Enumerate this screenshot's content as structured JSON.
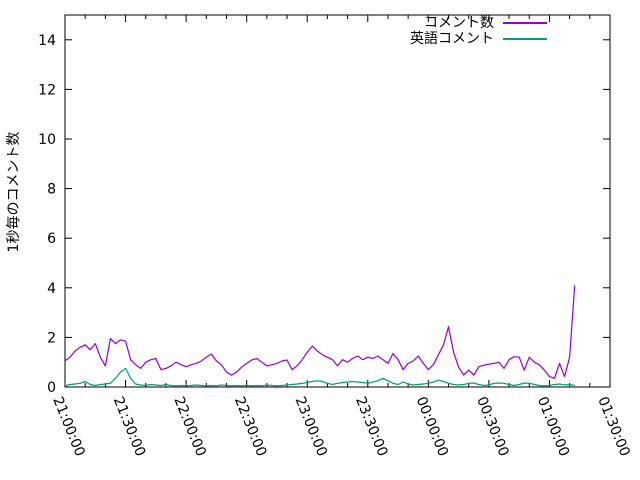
{
  "page": {
    "background": "#ffffff",
    "text_color": "#000000"
  },
  "chart_data": {
    "type": "line",
    "title": "",
    "xlabel": "",
    "ylabel": "1秒毎のコメント数",
    "ylim": [
      0,
      15
    ],
    "y_ticks": [
      0,
      2,
      4,
      6,
      8,
      10,
      12,
      14
    ],
    "y_tick_labels": [
      "0",
      "2",
      "4",
      "6",
      "8",
      "10",
      "12",
      "14"
    ],
    "x_minutes_range": [
      0,
      270
    ],
    "x_major_tick_every_minutes": 30,
    "x_minor_tick_every_minutes": 10,
    "x_tick_labels": [
      "21:00:00",
      "21:30:00",
      "22:00:00",
      "22:30:00",
      "23:00:00",
      "23:30:00",
      "00:00:00",
      "00:30:00",
      "01:00:00",
      "01:30:00"
    ],
    "grid": false,
    "axis_color": "#000000",
    "legend_position": "top-right-inside",
    "x": [
      0,
      2.5,
      5,
      7.5,
      10,
      12.5,
      15,
      17.5,
      20,
      22.5,
      25,
      27.5,
      30,
      32.5,
      35,
      37.5,
      40,
      42.5,
      45,
      47.5,
      50,
      52.5,
      55,
      57.5,
      60,
      62.5,
      65,
      67.5,
      70,
      72.5,
      75,
      77.5,
      80,
      82.5,
      85,
      87.5,
      90,
      92.5,
      95,
      97.5,
      100,
      102.5,
      105,
      107.5,
      110,
      112.5,
      115,
      117.5,
      120,
      122.5,
      125,
      127.5,
      130,
      132.5,
      135,
      137.5,
      140,
      142.5,
      145,
      147.5,
      150,
      152.5,
      155,
      157.5,
      160,
      162.5,
      165,
      167.5,
      170,
      172.5,
      175,
      177.5,
      180,
      182.5,
      185,
      187.5,
      190,
      192.5,
      195,
      197.5,
      200,
      202.5,
      205,
      207.5,
      210,
      212.5,
      215,
      217.5,
      220,
      222.5,
      225,
      227.5,
      230,
      232.5,
      235,
      237.5,
      240,
      242.5,
      245,
      247.5,
      250,
      252.5
    ],
    "series": [
      {
        "name": "コメント数",
        "color": "#9400d3",
        "values": [
          1.05,
          1.2,
          1.45,
          1.6,
          1.7,
          1.5,
          1.75,
          1.2,
          0.85,
          1.95,
          1.75,
          1.9,
          1.85,
          1.1,
          0.9,
          0.75,
          1.0,
          1.1,
          1.15,
          0.7,
          0.75,
          0.85,
          1.0,
          0.9,
          0.82,
          0.9,
          0.95,
          1.05,
          1.2,
          1.33,
          1.05,
          0.9,
          0.6,
          0.48,
          0.6,
          0.8,
          0.95,
          1.09,
          1.15,
          1.0,
          0.85,
          0.9,
          0.95,
          1.05,
          1.09,
          0.7,
          0.85,
          1.1,
          1.4,
          1.65,
          1.45,
          1.3,
          1.2,
          1.1,
          0.85,
          1.1,
          1.0,
          1.15,
          1.25,
          1.1,
          1.2,
          1.15,
          1.25,
          1.1,
          0.95,
          1.35,
          1.1,
          0.7,
          0.95,
          1.05,
          1.25,
          0.95,
          0.7,
          0.9,
          1.3,
          1.7,
          2.43,
          1.4,
          0.8,
          0.48,
          0.68,
          0.48,
          0.82,
          0.88,
          0.92,
          0.95,
          1.0,
          0.75,
          1.1,
          1.22,
          1.2,
          0.68,
          1.2,
          1.0,
          0.89,
          0.68,
          0.42,
          0.35,
          0.95,
          0.42,
          1.2,
          4.1
        ]
      },
      {
        "name": "英語コメント",
        "color": "#009e73",
        "values": [
          0.05,
          0.1,
          0.12,
          0.15,
          0.22,
          0.1,
          0.06,
          0.1,
          0.12,
          0.15,
          0.35,
          0.6,
          0.75,
          0.35,
          0.12,
          0.08,
          0.06,
          0.1,
          0.08,
          0.06,
          0.1,
          0.06,
          0.05,
          0.06,
          0.05,
          0.06,
          0.08,
          0.06,
          0.05,
          0.06,
          0.05,
          0.08,
          0.06,
          0.05,
          0.06,
          0.05,
          0.06,
          0.05,
          0.06,
          0.05,
          0.08,
          0.06,
          0.05,
          0.06,
          0.08,
          0.1,
          0.12,
          0.15,
          0.18,
          0.22,
          0.25,
          0.22,
          0.15,
          0.1,
          0.15,
          0.18,
          0.2,
          0.22,
          0.2,
          0.18,
          0.15,
          0.2,
          0.25,
          0.35,
          0.25,
          0.15,
          0.1,
          0.2,
          0.12,
          0.08,
          0.1,
          0.12,
          0.15,
          0.2,
          0.28,
          0.22,
          0.15,
          0.1,
          0.08,
          0.1,
          0.15,
          0.16,
          0.1,
          0.06,
          0.08,
          0.15,
          0.16,
          0.15,
          0.1,
          0.06,
          0.1,
          0.16,
          0.15,
          0.1,
          0.06,
          0.05,
          0.06,
          0.1,
          0.12,
          0.08,
          0.1,
          0.06
        ]
      }
    ]
  }
}
